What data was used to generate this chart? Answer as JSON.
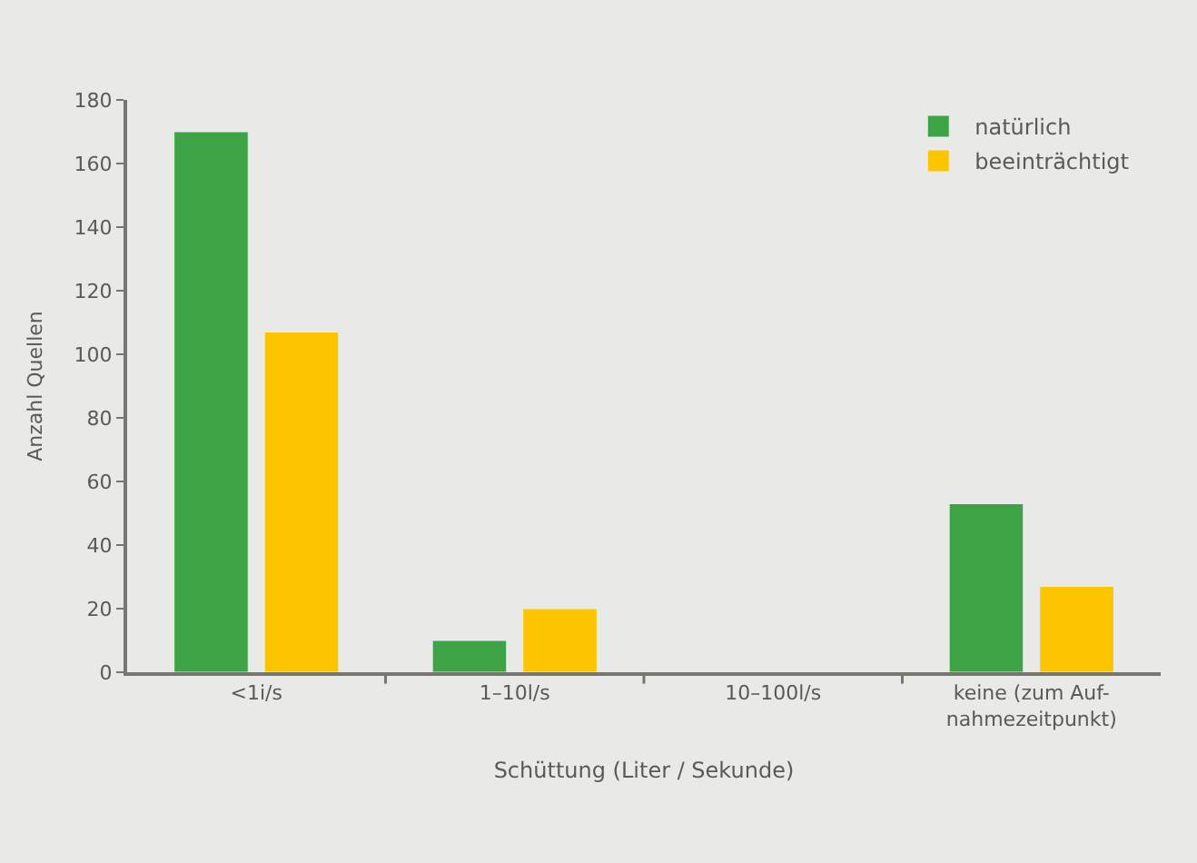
{
  "chart_data": {
    "type": "bar",
    "xlabel": "Schüttung (Liter / Sekunde)",
    "ylabel": "Anzahl Quellen",
    "categories": [
      "<1i/s",
      "1–10l/s",
      "10–100l/s",
      "keine (zum Auf-\nnahmezeitpunkt)"
    ],
    "series": [
      {
        "name": "natürlich",
        "color": "#3da344",
        "values": [
          170,
          10,
          null,
          53
        ]
      },
      {
        "name": "beeinträchtigt",
        "color": "#fdc400",
        "values": [
          107,
          20,
          null,
          27
        ]
      }
    ],
    "ylim": [
      0,
      180
    ],
    "yticks": [
      0,
      20,
      40,
      60,
      80,
      100,
      120,
      140,
      160,
      180
    ],
    "grid": false,
    "legend": "top right"
  }
}
